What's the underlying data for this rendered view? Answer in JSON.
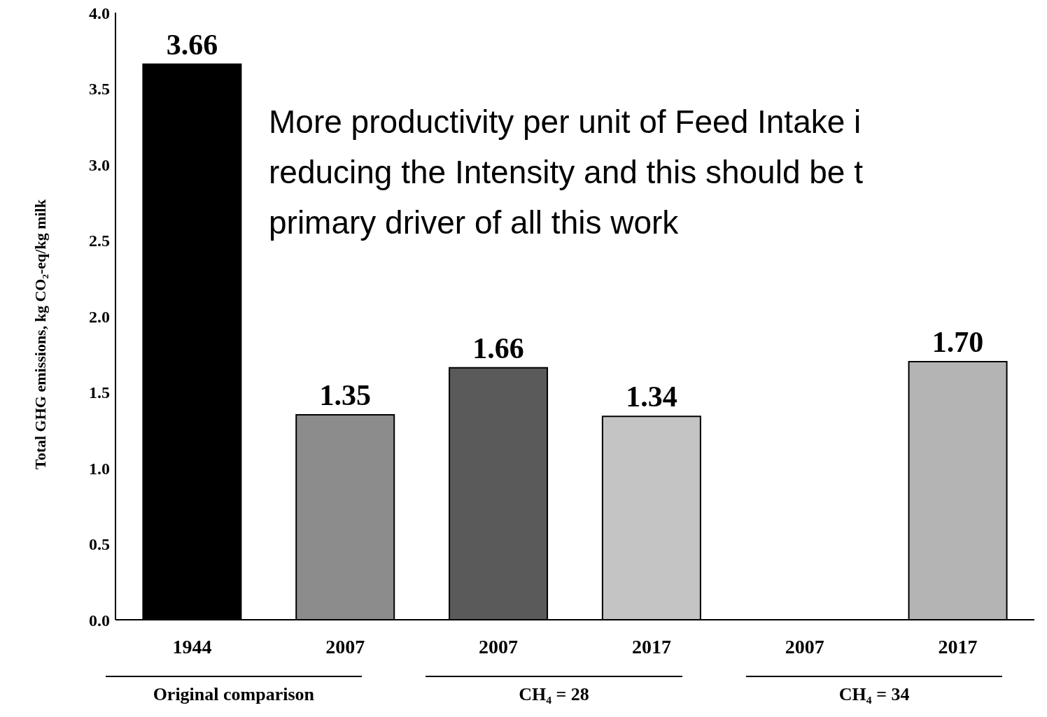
{
  "chart_data": {
    "type": "bar",
    "ylabel": "Total GHG emissions, kg CO₂-eq/kg milk",
    "categories": [
      "1944",
      "2007",
      "2007",
      "2017",
      "2007",
      "2017"
    ],
    "values": [
      3.66,
      1.35,
      1.66,
      1.34,
      null,
      1.7
    ],
    "colors": [
      "#000000",
      "#8c8c8c",
      "#5a5a5a",
      "#c4c4c4",
      "#3c3c3c",
      "#b4b4b4"
    ],
    "value_labels": [
      "3.66",
      "1.35",
      "1.66",
      "1.34",
      null,
      "1.70"
    ],
    "ylim": [
      0,
      4
    ],
    "yticks": [
      {
        "value": 0,
        "label": "0.0"
      },
      {
        "value": 0.5,
        "label": "0.5"
      },
      {
        "value": 1,
        "label": "1.0"
      },
      {
        "value": 1.5,
        "label": "1.5"
      },
      {
        "value": 2,
        "label": "2.0"
      },
      {
        "value": 2.5,
        "label": "2.5"
      },
      {
        "value": 3,
        "label": "3.0"
      },
      {
        "value": 3.5,
        "label": "3.5"
      },
      {
        "value": 4,
        "label": "4.0"
      }
    ],
    "annotations": [
      "More productivity per unit of Feed Intake i",
      "reducing the Intensity and this should be t",
      "primary driver of all this work",
      "Original comparison",
      "CH₄ = 28",
      "CH₄ = 34"
    ]
  }
}
